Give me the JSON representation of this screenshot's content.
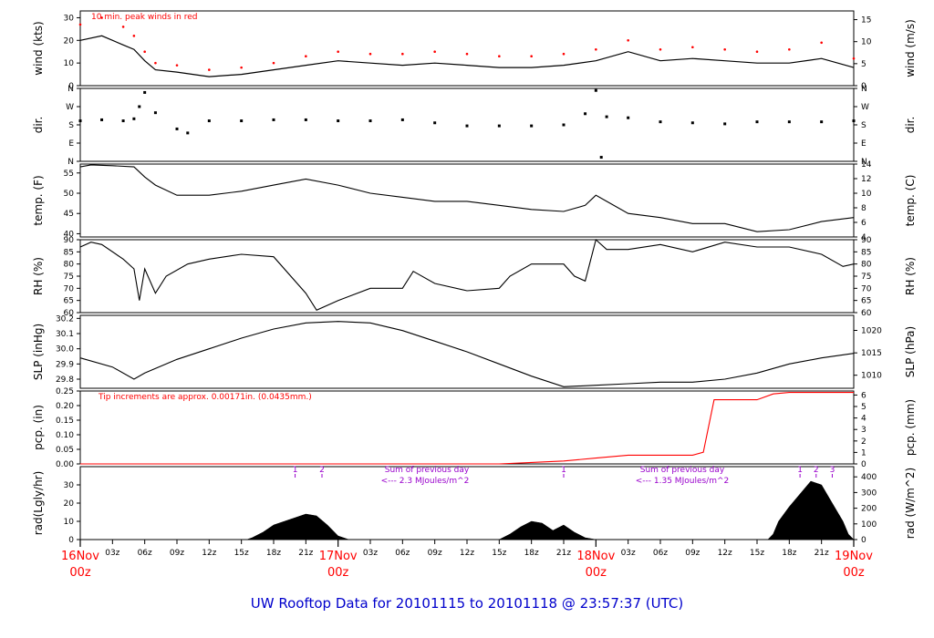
{
  "footer": {
    "title": "UW Rooftop Data for 20101115  to  20101118 @ 23:57:37  (UTC)"
  },
  "colors": {
    "peak": "#ff0000",
    "precip": "#ff0000",
    "annotation": "#9900cc",
    "date": "#ff0000",
    "title": "#0000cc",
    "series": "#000000"
  },
  "time_axis": {
    "hours": [
      "03z",
      "06z",
      "09z",
      "12z",
      "15z",
      "18z",
      "21z"
    ],
    "days": [
      {
        "day": "16Nov",
        "hour": "00z"
      },
      {
        "day": "17Nov",
        "hour": "00z"
      },
      {
        "day": "18Nov",
        "hour": "00z"
      },
      {
        "day": "19Nov",
        "hour": "00z"
      }
    ]
  },
  "chart_data": [
    {
      "type": "line",
      "key": "wind",
      "ylabel_left": "wind (kts)",
      "ylabel_right": "wind (m/s)",
      "note": "10 min. peak winds in red",
      "ylim": [
        0,
        33
      ],
      "left_ticks": [
        0,
        10,
        20,
        30
      ],
      "left_tick_labels": [
        "0",
        "10",
        "20",
        "30"
      ],
      "right_ticks": [
        0,
        9.72,
        19.44,
        29.16
      ],
      "right_tick_labels": [
        "0",
        "5",
        "10",
        "15"
      ],
      "x": [
        0,
        2,
        4,
        5,
        6,
        7,
        9,
        12,
        15,
        18,
        21,
        24,
        27,
        30,
        33,
        36,
        39,
        42,
        45,
        48,
        51,
        54,
        57,
        60,
        63,
        66,
        69,
        72
      ],
      "series": [
        {
          "name": "speed",
          "values": [
            20,
            22,
            18,
            16,
            11,
            7,
            6,
            4,
            5,
            7,
            9,
            11,
            10,
            9,
            10,
            9,
            8,
            8,
            9,
            11,
            15,
            11,
            12,
            11,
            10,
            10,
            12,
            8
          ]
        },
        {
          "name": "peak",
          "values": [
            27,
            30,
            26,
            22,
            15,
            10,
            9,
            7,
            8,
            10,
            13,
            15,
            14,
            14,
            15,
            14,
            13,
            13,
            14,
            16,
            20,
            16,
            17,
            16,
            15,
            16,
            19,
            12
          ]
        }
      ]
    },
    {
      "type": "scatter",
      "key": "dir",
      "ylabel_left": "dir.",
      "ylabel_right": "dir.",
      "ylim": [
        0,
        360
      ],
      "left_ticks": [
        0,
        90,
        180,
        270,
        360
      ],
      "left_tick_labels": [
        "N",
        "E",
        "S",
        "W",
        "N"
      ],
      "right_ticks": [
        0,
        90,
        180,
        270,
        360
      ],
      "right_tick_labels": [
        "N",
        "E",
        "S",
        "W",
        "N"
      ],
      "x": [
        0,
        2,
        4,
        5,
        5.5,
        6,
        7,
        9,
        10,
        12,
        15,
        18,
        21,
        24,
        27,
        30,
        33,
        36,
        39,
        42,
        45,
        47,
        48,
        48.5,
        49,
        51,
        54,
        57,
        60,
        63,
        66,
        69,
        72
      ],
      "values": [
        200,
        205,
        200,
        210,
        270,
        340,
        240,
        160,
        140,
        200,
        200,
        205,
        205,
        200,
        200,
        205,
        190,
        175,
        175,
        175,
        180,
        235,
        350,
        20,
        220,
        215,
        195,
        190,
        185,
        195,
        195,
        195,
        200
      ]
    },
    {
      "type": "line",
      "key": "temp",
      "ylabel_left": "temp. (F)",
      "ylabel_right": "temp. (C)",
      "ylim": [
        39.2,
        57.2
      ],
      "left_ticks": [
        40,
        45,
        50,
        55
      ],
      "left_tick_labels": [
        "40",
        "45",
        "50",
        "55"
      ],
      "right_ticks": [
        39.2,
        42.8,
        46.4,
        50,
        53.6,
        57.2
      ],
      "right_tick_labels": [
        "4",
        "6",
        "8",
        "10",
        "12",
        "14"
      ],
      "x": [
        0,
        1,
        3,
        5,
        6,
        7,
        9,
        12,
        15,
        18,
        21,
        24,
        27,
        30,
        33,
        36,
        39,
        42,
        45,
        47,
        48,
        49,
        51,
        54,
        57,
        60,
        63,
        66,
        69,
        72
      ],
      "values": [
        56.5,
        57,
        56.8,
        56.5,
        54,
        52,
        49.5,
        49.5,
        50.5,
        52,
        53.5,
        52,
        50,
        49,
        48,
        48,
        47,
        46,
        45.5,
        47,
        49.5,
        48,
        45,
        44,
        42.5,
        42.5,
        40.5,
        41,
        43,
        44
      ]
    },
    {
      "type": "line",
      "key": "rh",
      "ylabel_left": "RH (%)",
      "ylabel_right": "RH (%)",
      "ylim": [
        60,
        90
      ],
      "left_ticks": [
        60,
        65,
        70,
        75,
        80,
        85,
        90
      ],
      "left_tick_labels": [
        "60",
        "65",
        "70",
        "75",
        "80",
        "85",
        "90"
      ],
      "right_ticks": [
        60,
        65,
        70,
        75,
        80,
        85,
        90
      ],
      "right_tick_labels": [
        "60",
        "65",
        "70",
        "75",
        "80",
        "85",
        "90"
      ],
      "x": [
        0,
        1,
        2,
        4,
        5,
        5.5,
        6,
        7,
        8,
        10,
        12,
        15,
        18,
        21,
        22,
        24,
        27,
        30,
        31,
        33,
        36,
        39,
        40,
        42,
        45,
        46,
        47,
        48,
        49,
        51,
        54,
        57,
        60,
        63,
        66,
        69,
        71,
        72
      ],
      "values": [
        87,
        89,
        88,
        82,
        78,
        65,
        78,
        68,
        75,
        80,
        82,
        84,
        83,
        68,
        61,
        65,
        70,
        70,
        77,
        72,
        69,
        70,
        75,
        80,
        80,
        75,
        73,
        90,
        86,
        86,
        88,
        85,
        89,
        87,
        87,
        84,
        79,
        80
      ]
    },
    {
      "type": "line",
      "key": "slp",
      "ylabel_left": "SLP (inHg)",
      "ylabel_right": "SLP (hPa)",
      "ylim": [
        29.74,
        30.22
      ],
      "left_ticks": [
        29.8,
        29.9,
        30.0,
        30.1,
        30.2
      ],
      "left_tick_labels": [
        "29.8",
        "29.9",
        "30.0",
        "30.1",
        "30.2"
      ],
      "right_ticks": [
        29.826,
        29.973,
        30.121
      ],
      "right_tick_labels": [
        "1010",
        "1015",
        "1020"
      ],
      "x": [
        0,
        3,
        5,
        6,
        9,
        12,
        15,
        18,
        21,
        24,
        27,
        30,
        33,
        36,
        39,
        42,
        45,
        48,
        51,
        54,
        57,
        60,
        63,
        66,
        69,
        72
      ],
      "values": [
        29.94,
        29.88,
        29.8,
        29.84,
        29.93,
        30.0,
        30.07,
        30.13,
        30.17,
        30.18,
        30.17,
        30.12,
        30.05,
        29.98,
        29.9,
        29.82,
        29.75,
        29.76,
        29.77,
        29.78,
        29.78,
        29.8,
        29.84,
        29.9,
        29.94,
        29.97
      ]
    },
    {
      "type": "line",
      "key": "pcp",
      "ylabel_left": "pcp. (in)",
      "ylabel_right": "pcp. (mm)",
      "note": "Tip increments are approx. 0.00171in. (0.0435mm.)",
      "ylim": [
        0,
        0.25
      ],
      "left_ticks": [
        0,
        0.05,
        0.1,
        0.15,
        0.2,
        0.25
      ],
      "left_tick_labels": [
        "0.00",
        "0.05",
        "0.10",
        "0.15",
        "0.20",
        "0.25"
      ],
      "right_ticks": [
        0,
        0.0394,
        0.0787,
        0.1181,
        0.1575,
        0.1969,
        0.2362
      ],
      "right_tick_labels": [
        "0",
        "1",
        "2",
        "3",
        "4",
        "5",
        "6"
      ],
      "x": [
        0,
        39,
        42,
        45,
        48,
        51,
        57,
        58,
        59,
        60,
        63,
        64.5,
        66,
        72
      ],
      "values": [
        0,
        0,
        0.005,
        0.01,
        0.02,
        0.03,
        0.03,
        0.04,
        0.22,
        0.22,
        0.22,
        0.24,
        0.245,
        0.245
      ]
    },
    {
      "type": "area",
      "key": "rad",
      "ylabel_left": "rad(Lgly/hr)",
      "ylabel_right": "rad (W/m^2)",
      "ylim": [
        0,
        40
      ],
      "left_ticks": [
        0,
        10,
        20,
        30
      ],
      "left_tick_labels": [
        "0",
        "10",
        "20",
        "30"
      ],
      "right_ticks": [
        0,
        8.6,
        17.2,
        25.8,
        34.4
      ],
      "right_tick_labels": [
        "0",
        "100",
        "200",
        "300",
        "400"
      ],
      "annotations": [
        "Sum of previous day",
        "<--- 2.3 MJoules/m^2",
        "Sum of previous day",
        "<--- 1.35 MJoules/m^2"
      ],
      "markers": [
        {
          "x": 20,
          "label": "1"
        },
        {
          "x": 22.5,
          "label": "2"
        },
        {
          "x": 45,
          "label": "1"
        },
        {
          "x": 67,
          "label": "1"
        },
        {
          "x": 68.5,
          "label": "2"
        },
        {
          "x": 70,
          "label": "3"
        }
      ],
      "x": [
        15.5,
        16,
        17,
        18,
        19,
        20,
        21,
        22,
        23,
        24,
        25,
        39,
        40,
        41,
        42,
        43,
        44,
        45,
        46,
        47,
        48,
        49,
        64,
        64.5,
        65,
        66,
        67,
        68,
        69,
        70,
        71,
        71.5,
        72
      ],
      "values": [
        0,
        1,
        4,
        8,
        10,
        12,
        14,
        13,
        8,
        2,
        0,
        0,
        3,
        7,
        10,
        9,
        5,
        8,
        4,
        1,
        0,
        0,
        0,
        3,
        10,
        18,
        25,
        32,
        30,
        20,
        10,
        3,
        0
      ]
    }
  ]
}
